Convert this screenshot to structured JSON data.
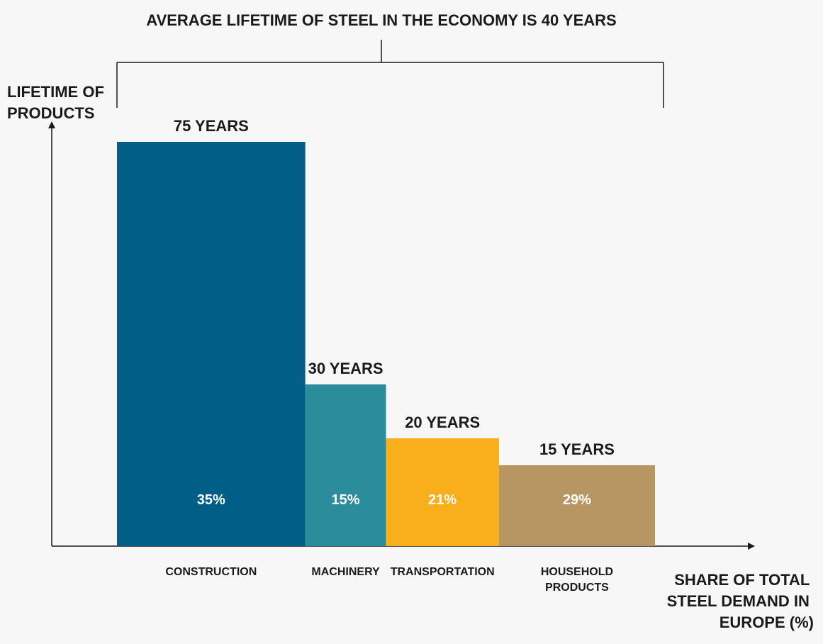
{
  "chart_data": {
    "type": "bar",
    "title": "AVERAGE LIFETIME OF STEEL IN THE ECONOMY IS 40 YEARS",
    "ylabel": [
      "LIFETIME OF",
      "PRODUCTS"
    ],
    "xlabel": [
      "SHARE OF TOTAL",
      "STEEL DEMAND IN",
      "EUROPE (%)"
    ],
    "ylim": [
      0,
      85
    ],
    "xlim": [
      0,
      100
    ],
    "categories": [
      [
        "CONSTRUCTION"
      ],
      [
        "MACHINERY"
      ],
      [
        "TRANSPORTATION"
      ],
      [
        "HOUSEHOLD",
        "PRODUCTS"
      ]
    ],
    "values": [
      75,
      30,
      20,
      15
    ],
    "value_labels": [
      "75 YEARS",
      "30 YEARS",
      "20 YEARS",
      "15 YEARS"
    ],
    "shares": [
      35,
      15,
      21,
      29
    ],
    "share_labels": [
      "35%",
      "15%",
      "21%",
      "29%"
    ],
    "colors": [
      "#005e87",
      "#2b8c9c",
      "#f9ae1b",
      "#b79663"
    ],
    "grid": false,
    "legend": "none"
  }
}
